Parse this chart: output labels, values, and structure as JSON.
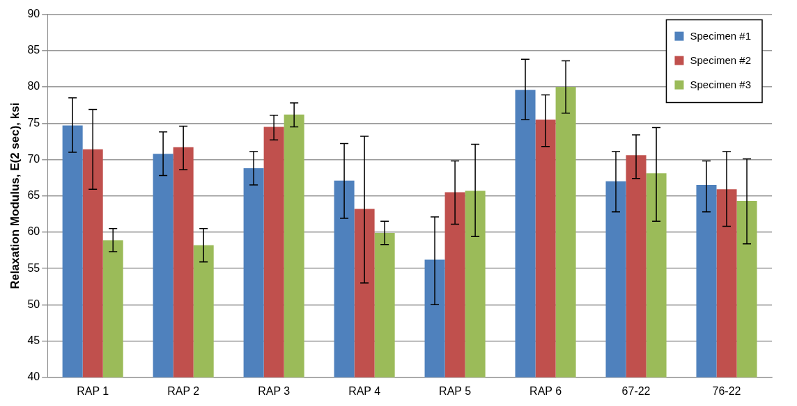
{
  "chart_data": {
    "type": "bar",
    "ylabel": "Relaxation Modulus, E(2 sec), ksi",
    "categories": [
      "RAP 1",
      "RAP 2",
      "RAP 3",
      "RAP 4",
      "RAP 5",
      "RAP 6",
      "67-22",
      "76-22"
    ],
    "series": [
      {
        "name": "Specimen #1",
        "color": "#4f81bd",
        "values": [
          74.7,
          70.8,
          68.8,
          67.1,
          56.2,
          79.6,
          67.0,
          66.5
        ],
        "errors": [
          [
            71,
            78.5
          ],
          [
            67.8,
            73.8
          ],
          [
            66.5,
            71.1
          ],
          [
            61.9,
            72.2
          ],
          [
            50,
            62.1
          ],
          [
            75.5,
            83.8
          ],
          [
            62.8,
            71.1
          ],
          [
            62.8,
            69.8
          ]
        ]
      },
      {
        "name": "Specimen #2",
        "color": "#c0504d",
        "values": [
          71.4,
          71.7,
          74.5,
          63.2,
          65.5,
          75.5,
          70.6,
          65.9
        ],
        "errors": [
          [
            65.9,
            76.9
          ],
          [
            68.6,
            74.6
          ],
          [
            72.7,
            76.1
          ],
          [
            53,
            73.2
          ],
          [
            61.1,
            69.8
          ],
          [
            71.8,
            78.9
          ],
          [
            67.4,
            73.4
          ],
          [
            60.8,
            71.1
          ]
        ]
      },
      {
        "name": "Specimen #3",
        "color": "#9bbb59",
        "values": [
          58.9,
          58.2,
          76.2,
          59.9,
          65.7,
          80.0,
          68.1,
          64.3
        ],
        "errors": [
          [
            57.3,
            60.5
          ],
          [
            55.9,
            60.5
          ],
          [
            74.5,
            77.8
          ],
          [
            58.3,
            61.5
          ],
          [
            59.4,
            72.1
          ],
          [
            76.4,
            83.6
          ],
          [
            61.5,
            74.4
          ],
          [
            58.4,
            70.1
          ]
        ]
      }
    ],
    "ylim": [
      40,
      90
    ],
    "yticks": [
      40,
      45,
      50,
      55,
      60,
      65,
      70,
      75,
      80,
      85,
      90
    ],
    "grid": "y",
    "legend": "top right"
  }
}
